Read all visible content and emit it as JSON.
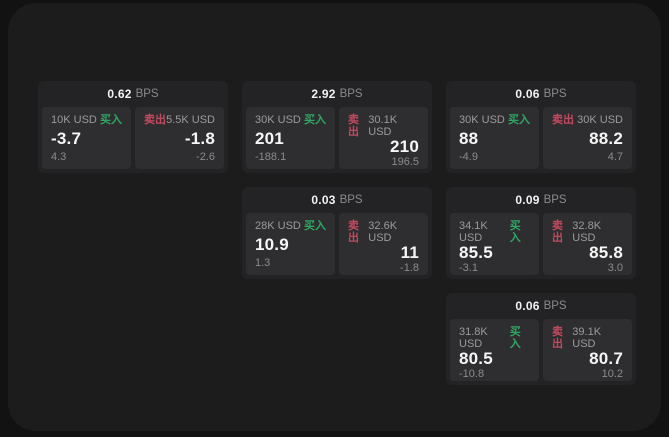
{
  "labels": {
    "bps_unit": "BPS",
    "buy": "买入",
    "sell": "卖出"
  },
  "colors": {
    "buy": "#2fa763",
    "sell": "#c24a5e"
  },
  "cards": [
    {
      "col": 1,
      "row": 1,
      "bps": "0.62",
      "buy": {
        "amount": "10K USD",
        "price": "-3.7",
        "change": "4.3"
      },
      "sell": {
        "amount": "5.5K USD",
        "price": "-1.8",
        "change": "-2.6"
      }
    },
    {
      "col": 2,
      "row": 1,
      "bps": "2.92",
      "buy": {
        "amount": "30K USD",
        "price": "201",
        "change": "-188.1"
      },
      "sell": {
        "amount": "30.1K USD",
        "price": "210",
        "change": "196.5"
      }
    },
    {
      "col": 3,
      "row": 1,
      "bps": "0.06",
      "buy": {
        "amount": "30K USD",
        "price": "88",
        "change": "-4.9"
      },
      "sell": {
        "amount": "30K USD",
        "price": "88.2",
        "change": "4.7"
      }
    },
    {
      "col": 2,
      "row": 2,
      "bps": "0.03",
      "buy": {
        "amount": "28K USD",
        "price": "10.9",
        "change": "1.3"
      },
      "sell": {
        "amount": "32.6K USD",
        "price": "11",
        "change": "-1.8"
      }
    },
    {
      "col": 3,
      "row": 2,
      "bps": "0.09",
      "buy": {
        "amount": "34.1K USD",
        "price": "85.5",
        "change": "-3.1"
      },
      "sell": {
        "amount": "32.8K USD",
        "price": "85.8",
        "change": "3.0"
      }
    },
    {
      "col": 3,
      "row": 3,
      "bps": "0.06",
      "buy": {
        "amount": "31.8K USD",
        "price": "80.5",
        "change": "-10.8"
      },
      "sell": {
        "amount": "39.1K USD",
        "price": "80.7",
        "change": "10.2"
      }
    }
  ]
}
